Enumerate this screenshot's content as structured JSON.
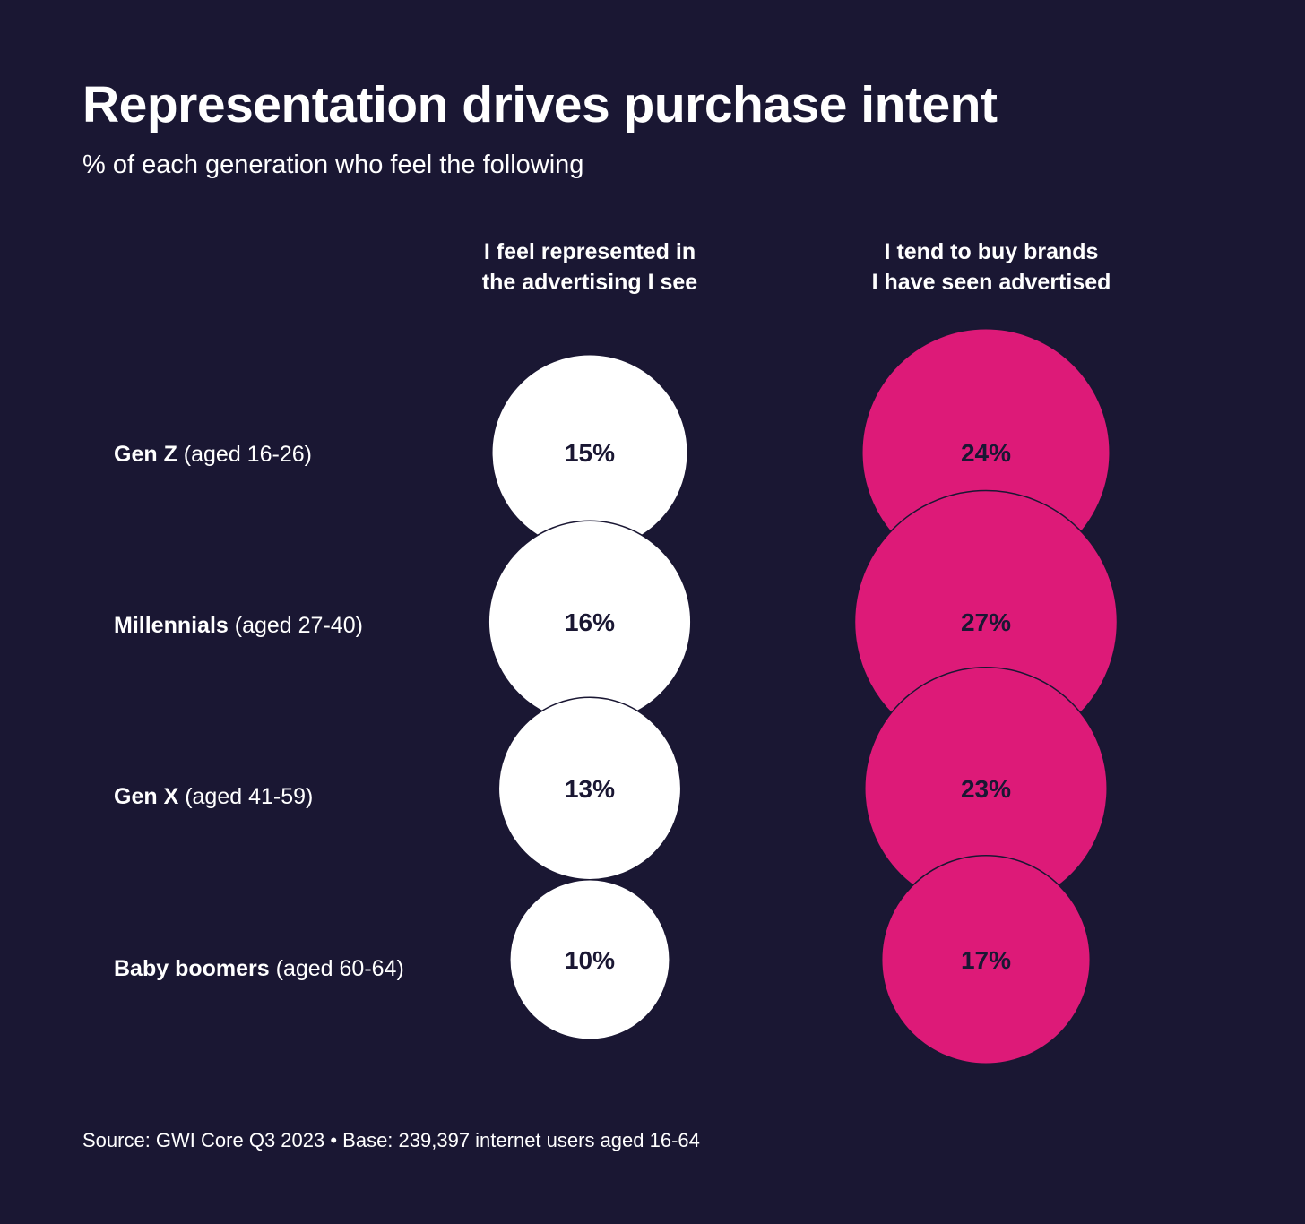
{
  "colors": {
    "background": "#1a1733",
    "series1": "#ffffff",
    "series2": "#dd1a78",
    "value_text": "#1a1733"
  },
  "chart_data": {
    "type": "bubble",
    "title": "Representation drives purchase intent",
    "subtitle": "% of each generation who feel the following",
    "columns": [
      [
        "I feel represented in",
        "the advertising I see"
      ],
      [
        "I tend to buy brands",
        "I have seen advertised"
      ]
    ],
    "rows": [
      {
        "generation": "Gen Z",
        "age": "(aged 16-26)"
      },
      {
        "generation": "Millennials",
        "age": "(aged 27-40)"
      },
      {
        "generation": "Gen X",
        "age": "(aged 41-59)"
      },
      {
        "generation": "Baby boomers",
        "age": "(aged 60-64)"
      }
    ],
    "series": [
      {
        "values": [
          15,
          16,
          13,
          10
        ],
        "labels": [
          "15%",
          "16%",
          "13%",
          "10%"
        ]
      },
      {
        "values": [
          24,
          27,
          23,
          17
        ],
        "labels": [
          "24%",
          "27%",
          "23%",
          "17%"
        ]
      }
    ],
    "unit": "%",
    "source": "Source: GWI Core Q3 2023 • Base: 239,397 internet users aged 16-64"
  }
}
